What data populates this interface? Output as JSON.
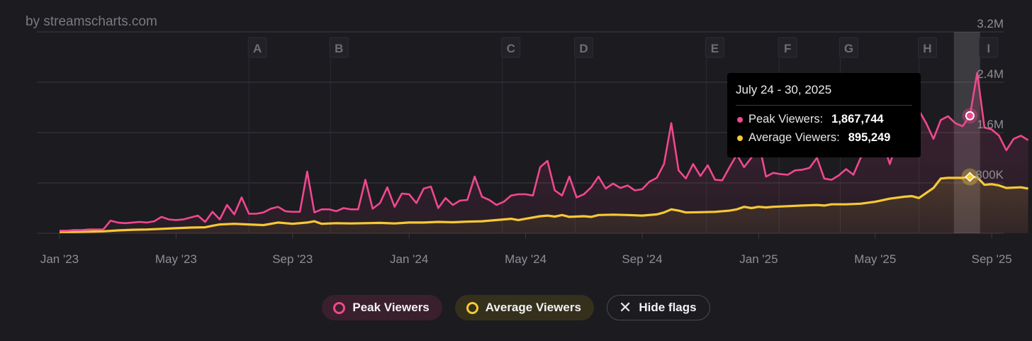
{
  "watermark": "by streamscharts.com",
  "colors": {
    "peak": "#f0488e",
    "average": "#f6c935",
    "background": "#1c1b20",
    "grid": "#3b3a40",
    "tick": "#8f8e94"
  },
  "legend": {
    "peak_label": "Peak Viewers",
    "average_label": "Average Viewers",
    "hide_flags_label": "Hide flags"
  },
  "tooltip": {
    "title": "July 24 - 30, 2025",
    "peak_label": "Peak Viewers:",
    "peak_value": "1,867,744",
    "average_label": "Average Viewers:",
    "average_value": "895,249"
  },
  "chart_data": {
    "type": "line",
    "title": "",
    "xlabel": "",
    "ylabel": "",
    "x_unit": "months since Jan 2023",
    "ylim": [
      0,
      3200000
    ],
    "y_ticks": [
      {
        "value": 800000,
        "label": "800K"
      },
      {
        "value": 1600000,
        "label": "1.6M"
      },
      {
        "value": 2400000,
        "label": "2.4M"
      },
      {
        "value": 3200000,
        "label": "3.2M"
      }
    ],
    "x_ticks": [
      {
        "x": 0,
        "label": "Jan '23"
      },
      {
        "x": 4,
        "label": "May '23"
      },
      {
        "x": 8,
        "label": "Sep '23"
      },
      {
        "x": 12,
        "label": "Jan '24"
      },
      {
        "x": 16,
        "label": "May '24"
      },
      {
        "x": 20,
        "label": "Sep '24"
      },
      {
        "x": 24,
        "label": "Jan '25"
      },
      {
        "x": 28,
        "label": "May '25"
      },
      {
        "x": 32,
        "label": "Sep '25"
      }
    ],
    "flags": [
      {
        "x": 6.5,
        "label": "A"
      },
      {
        "x": 9.3,
        "label": "B"
      },
      {
        "x": 15.2,
        "label": "C"
      },
      {
        "x": 17.7,
        "label": "D"
      },
      {
        "x": 22.2,
        "label": "E"
      },
      {
        "x": 24.7,
        "label": "F"
      },
      {
        "x": 26.8,
        "label": "G"
      },
      {
        "x": 29.5,
        "label": "H"
      },
      {
        "x": 31.6,
        "label": "I"
      }
    ],
    "highlight": {
      "from": 30.7,
      "to": 31.6,
      "x": 31.25
    },
    "series": [
      {
        "name": "Peak Viewers",
        "points": [
          [
            0,
            40000
          ],
          [
            0.25,
            40000
          ],
          [
            0.5,
            50000
          ],
          [
            0.75,
            50000
          ],
          [
            1.0,
            60000
          ],
          [
            1.25,
            60000
          ],
          [
            1.5,
            60000
          ],
          [
            1.75,
            200000
          ],
          [
            2.0,
            170000
          ],
          [
            2.25,
            160000
          ],
          [
            2.5,
            170000
          ],
          [
            2.75,
            180000
          ],
          [
            3.0,
            170000
          ],
          [
            3.25,
            190000
          ],
          [
            3.5,
            260000
          ],
          [
            3.75,
            220000
          ],
          [
            4.0,
            210000
          ],
          [
            4.25,
            220000
          ],
          [
            4.5,
            250000
          ],
          [
            4.75,
            280000
          ],
          [
            5.0,
            180000
          ],
          [
            5.25,
            340000
          ],
          [
            5.5,
            220000
          ],
          [
            5.75,
            450000
          ],
          [
            6.0,
            300000
          ],
          [
            6.25,
            570000
          ],
          [
            6.5,
            310000
          ],
          [
            6.75,
            310000
          ],
          [
            7.0,
            330000
          ],
          [
            7.25,
            390000
          ],
          [
            7.5,
            420000
          ],
          [
            7.75,
            350000
          ],
          [
            8.0,
            340000
          ],
          [
            8.25,
            340000
          ],
          [
            8.5,
            980000
          ],
          [
            8.75,
            330000
          ],
          [
            9.0,
            380000
          ],
          [
            9.25,
            380000
          ],
          [
            9.5,
            350000
          ],
          [
            9.75,
            400000
          ],
          [
            10.0,
            380000
          ],
          [
            10.25,
            380000
          ],
          [
            10.5,
            850000
          ],
          [
            10.75,
            390000
          ],
          [
            11.0,
            480000
          ],
          [
            11.25,
            730000
          ],
          [
            11.5,
            420000
          ],
          [
            11.75,
            630000
          ],
          [
            12.0,
            620000
          ],
          [
            12.25,
            480000
          ],
          [
            12.5,
            710000
          ],
          [
            12.75,
            740000
          ],
          [
            13.0,
            400000
          ],
          [
            13.25,
            560000
          ],
          [
            13.5,
            450000
          ],
          [
            13.75,
            520000
          ],
          [
            14.0,
            530000
          ],
          [
            14.25,
            900000
          ],
          [
            14.5,
            580000
          ],
          [
            14.75,
            530000
          ],
          [
            15.0,
            450000
          ],
          [
            15.25,
            500000
          ],
          [
            15.5,
            600000
          ],
          [
            15.75,
            620000
          ],
          [
            16.0,
            620000
          ],
          [
            16.25,
            600000
          ],
          [
            16.5,
            1050000
          ],
          [
            16.75,
            1150000
          ],
          [
            17.0,
            680000
          ],
          [
            17.25,
            600000
          ],
          [
            17.5,
            900000
          ],
          [
            17.75,
            570000
          ],
          [
            18.0,
            620000
          ],
          [
            18.25,
            730000
          ],
          [
            18.5,
            900000
          ],
          [
            18.75,
            710000
          ],
          [
            19.0,
            790000
          ],
          [
            19.25,
            720000
          ],
          [
            19.5,
            760000
          ],
          [
            19.75,
            680000
          ],
          [
            20.0,
            700000
          ],
          [
            20.25,
            820000
          ],
          [
            20.5,
            880000
          ],
          [
            20.75,
            1100000
          ],
          [
            21.0,
            1750000
          ],
          [
            21.25,
            1000000
          ],
          [
            21.5,
            870000
          ],
          [
            21.75,
            1100000
          ],
          [
            22.0,
            910000
          ],
          [
            22.25,
            1080000
          ],
          [
            22.5,
            850000
          ],
          [
            22.75,
            840000
          ],
          [
            23.0,
            1050000
          ],
          [
            23.25,
            1250000
          ],
          [
            23.5,
            1050000
          ],
          [
            23.75,
            1200000
          ],
          [
            24.0,
            1450000
          ],
          [
            24.25,
            900000
          ],
          [
            24.5,
            960000
          ],
          [
            24.75,
            940000
          ],
          [
            25.0,
            930000
          ],
          [
            25.25,
            1000000
          ],
          [
            25.5,
            1010000
          ],
          [
            25.75,
            1040000
          ],
          [
            26.0,
            1200000
          ],
          [
            26.25,
            870000
          ],
          [
            26.5,
            850000
          ],
          [
            26.75,
            920000
          ],
          [
            27.0,
            1020000
          ],
          [
            27.25,
            930000
          ],
          [
            27.5,
            1200000
          ],
          [
            27.75,
            1400000
          ],
          [
            28.0,
            1550000
          ],
          [
            28.25,
            1450000
          ],
          [
            28.5,
            1100000
          ],
          [
            28.75,
            1450000
          ],
          [
            29.0,
            1600000
          ],
          [
            29.25,
            1800000
          ],
          [
            29.5,
            1950000
          ],
          [
            29.75,
            1750000
          ],
          [
            30.0,
            1500000
          ],
          [
            30.25,
            1800000
          ],
          [
            30.5,
            1860000
          ],
          [
            30.75,
            1750000
          ],
          [
            31.0,
            1700000
          ],
          [
            31.25,
            1867744
          ],
          [
            31.5,
            2550000
          ],
          [
            31.75,
            1680000
          ],
          [
            32.0,
            1650000
          ],
          [
            32.25,
            1550000
          ],
          [
            32.5,
            1320000
          ],
          [
            32.75,
            1500000
          ],
          [
            33.0,
            1550000
          ],
          [
            33.25,
            1480000
          ]
        ]
      },
      {
        "name": "Average Viewers",
        "points": [
          [
            0,
            20000
          ],
          [
            0.5,
            20000
          ],
          [
            1.0,
            25000
          ],
          [
            1.5,
            30000
          ],
          [
            2.0,
            45000
          ],
          [
            2.5,
            55000
          ],
          [
            3.0,
            60000
          ],
          [
            3.5,
            70000
          ],
          [
            4.0,
            80000
          ],
          [
            4.5,
            90000
          ],
          [
            5.0,
            95000
          ],
          [
            5.25,
            120000
          ],
          [
            5.5,
            140000
          ],
          [
            6.0,
            150000
          ],
          [
            6.5,
            140000
          ],
          [
            7.0,
            130000
          ],
          [
            7.25,
            150000
          ],
          [
            7.5,
            170000
          ],
          [
            8.0,
            150000
          ],
          [
            8.5,
            170000
          ],
          [
            8.75,
            190000
          ],
          [
            9.0,
            150000
          ],
          [
            9.5,
            160000
          ],
          [
            10.0,
            155000
          ],
          [
            10.5,
            160000
          ],
          [
            11.0,
            165000
          ],
          [
            11.5,
            155000
          ],
          [
            12.0,
            170000
          ],
          [
            12.5,
            170000
          ],
          [
            13.0,
            180000
          ],
          [
            13.5,
            175000
          ],
          [
            14.0,
            185000
          ],
          [
            14.5,
            190000
          ],
          [
            15.0,
            210000
          ],
          [
            15.5,
            230000
          ],
          [
            15.75,
            210000
          ],
          [
            16.0,
            230000
          ],
          [
            16.5,
            270000
          ],
          [
            16.75,
            280000
          ],
          [
            17.0,
            265000
          ],
          [
            17.25,
            290000
          ],
          [
            17.5,
            260000
          ],
          [
            18.0,
            270000
          ],
          [
            18.25,
            260000
          ],
          [
            18.5,
            290000
          ],
          [
            19.0,
            295000
          ],
          [
            19.5,
            290000
          ],
          [
            20.0,
            280000
          ],
          [
            20.5,
            300000
          ],
          [
            20.75,
            330000
          ],
          [
            21.0,
            380000
          ],
          [
            21.25,
            360000
          ],
          [
            21.5,
            330000
          ],
          [
            22.0,
            335000
          ],
          [
            22.5,
            340000
          ],
          [
            23.0,
            360000
          ],
          [
            23.25,
            380000
          ],
          [
            23.5,
            420000
          ],
          [
            23.75,
            400000
          ],
          [
            24.0,
            420000
          ],
          [
            24.25,
            410000
          ],
          [
            24.5,
            420000
          ],
          [
            25.0,
            430000
          ],
          [
            25.5,
            440000
          ],
          [
            26.0,
            450000
          ],
          [
            26.25,
            440000
          ],
          [
            26.5,
            460000
          ],
          [
            27.0,
            460000
          ],
          [
            27.5,
            470000
          ],
          [
            28.0,
            500000
          ],
          [
            28.5,
            550000
          ],
          [
            29.0,
            580000
          ],
          [
            29.25,
            590000
          ],
          [
            29.5,
            560000
          ],
          [
            30.0,
            720000
          ],
          [
            30.25,
            870000
          ],
          [
            30.5,
            880000
          ],
          [
            31.0,
            880000
          ],
          [
            31.25,
            895249
          ],
          [
            31.5,
            890000
          ],
          [
            31.75,
            770000
          ],
          [
            32.0,
            780000
          ],
          [
            32.25,
            760000
          ],
          [
            32.5,
            720000
          ],
          [
            33.0,
            730000
          ],
          [
            33.25,
            710000
          ]
        ]
      }
    ]
  }
}
